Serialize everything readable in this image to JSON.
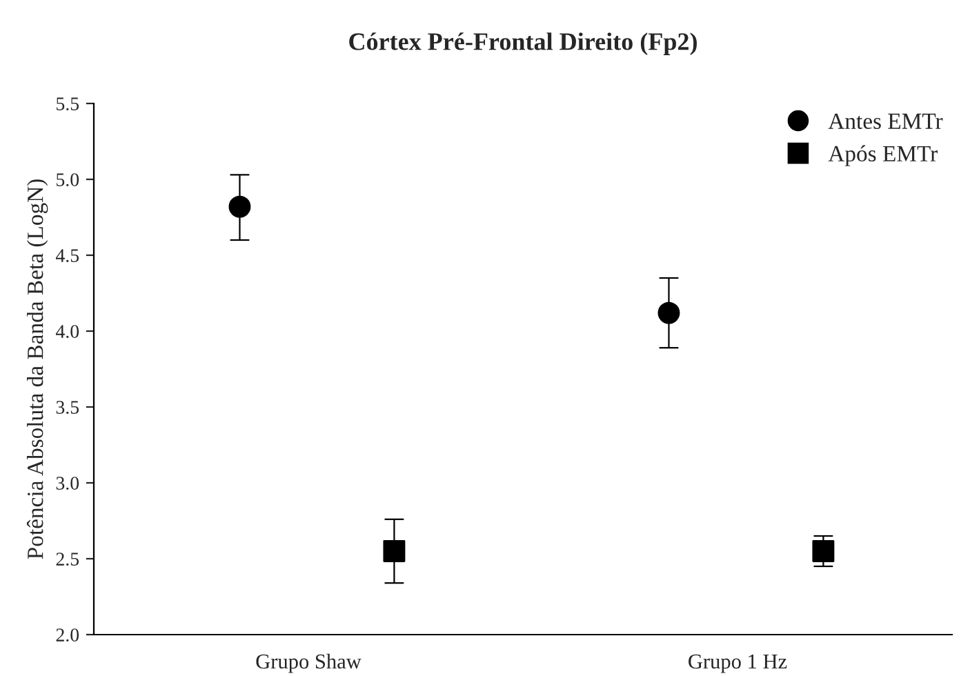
{
  "chart_data": {
    "type": "scatter",
    "title": "Córtex Pré-Frontal Direito (Fp2)",
    "ylabel": "Potência Absoluta da Banda Beta (LogN)",
    "categories": [
      "Grupo Shaw",
      "Grupo 1 Hz"
    ],
    "series": [
      {
        "name": "Antes EMTr",
        "color": "#000000",
        "marker": "circle",
        "values": [
          4.82,
          4.12
        ],
        "errors": [
          [
            4.6,
            5.03
          ],
          [
            3.89,
            4.35
          ]
        ]
      },
      {
        "name": "Após EMTr",
        "color": "#000000",
        "marker": "square",
        "values": [
          2.55,
          2.55
        ],
        "errors": [
          [
            2.34,
            2.76
          ],
          [
            2.45,
            2.65
          ]
        ]
      }
    ],
    "ylim": [
      2.0,
      5.5
    ],
    "yticks": [
      {
        "value": 2.0,
        "label": "2.0"
      },
      {
        "value": 2.5,
        "label": "2.5"
      },
      {
        "value": 3.0,
        "label": "3.0"
      },
      {
        "value": 3.5,
        "label": "3.5"
      },
      {
        "value": 4.0,
        "label": "4.0"
      },
      {
        "value": 4.5,
        "label": "4.5"
      },
      {
        "value": 5.0,
        "label": "5.0"
      },
      {
        "value": 5.5,
        "label": "5.5"
      }
    ],
    "grid": false,
    "legend": "top right"
  }
}
